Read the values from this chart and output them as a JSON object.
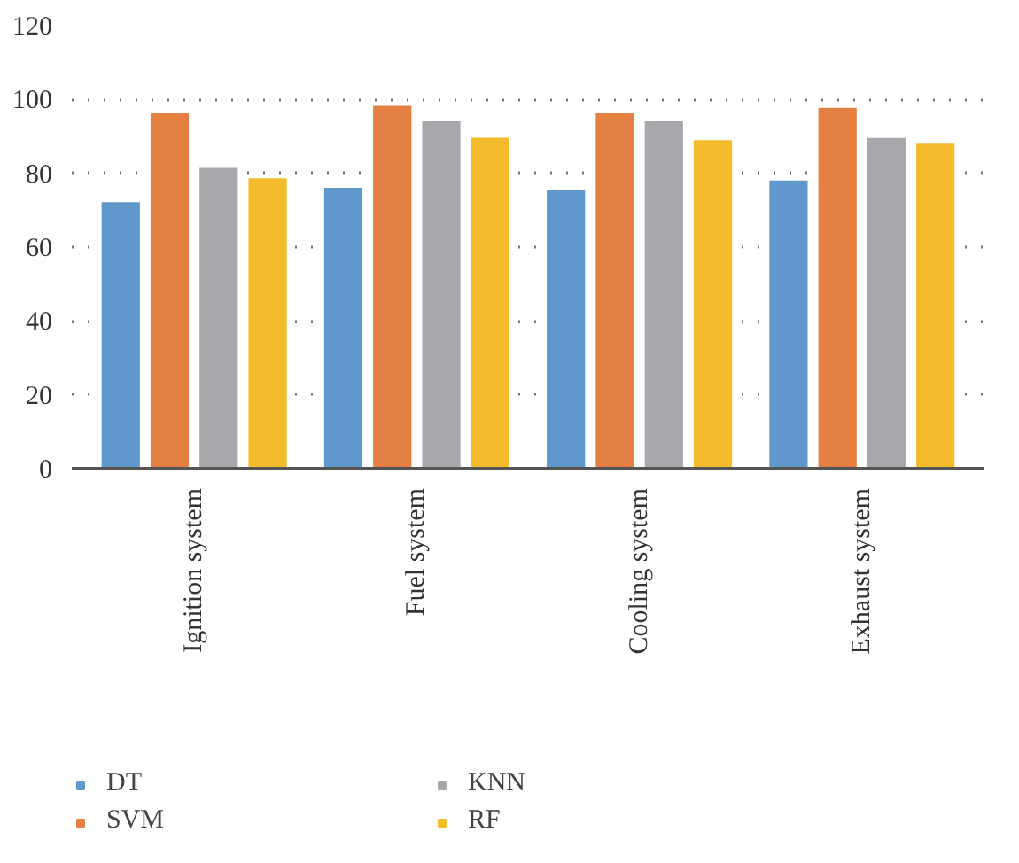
{
  "chart_data": {
    "type": "bar",
    "categories": [
      "Ignition system",
      "Fuel system",
      "Cooling system",
      "Exhaust system"
    ],
    "series": [
      {
        "name": "DT",
        "color": "#6198cb",
        "values": [
          72.4,
          76.3,
          75.6,
          78.3
        ]
      },
      {
        "name": "SVM",
        "color": "#e48041",
        "values": [
          96.5,
          98.5,
          96.5,
          98.0
        ]
      },
      {
        "name": "KNN",
        "color": "#a7a8ab",
        "values": [
          81.7,
          94.5,
          94.5,
          89.8
        ]
      },
      {
        "name": "RF",
        "color": "#f4bc2c",
        "values": [
          78.9,
          89.9,
          89.2,
          88.5
        ]
      }
    ],
    "ylim": [
      0,
      120
    ],
    "yticks": [
      0,
      20,
      40,
      60,
      80,
      100,
      120
    ],
    "grid": "y",
    "legend": "bottom"
  }
}
